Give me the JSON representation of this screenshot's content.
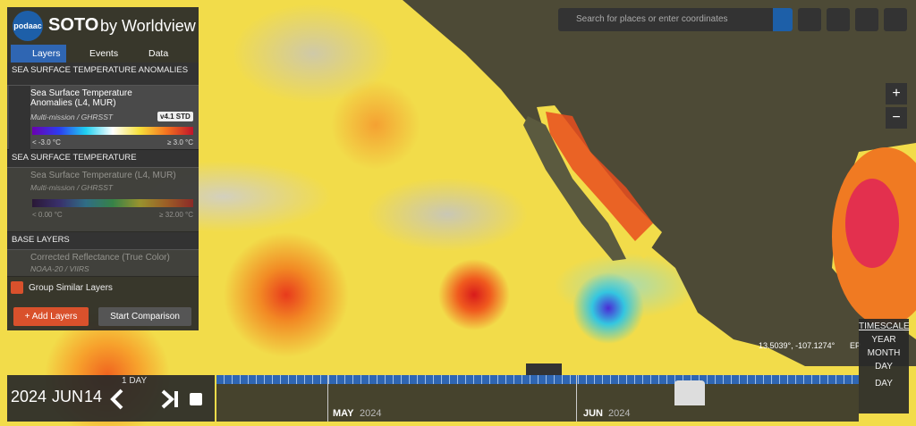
{
  "header": {
    "logo": "podaac",
    "title": "SOTO",
    "title_suffix": "by Worldview"
  },
  "tabs": [
    "Layers",
    "Events",
    "Data"
  ],
  "layer_groups": [
    {
      "title": "SEA SURFACE TEMPERATURE ANOMALIES",
      "layers": [
        {
          "name": "Sea Surface Temperature Anomalies (L4, MUR)",
          "source": "Multi-mission / GHRSST",
          "badge": "v4.1 STD",
          "min_label": "< -3.0 °C",
          "max_label": "≥ 3.0 °C"
        }
      ]
    },
    {
      "title": "SEA SURFACE TEMPERATURE",
      "layers": [
        {
          "name": "Sea Surface Temperature (L4, MUR)",
          "source": "Multi-mission / GHRSST",
          "min_label": "< 0.00 °C",
          "max_label": "≥ 32.00 °C"
        }
      ]
    },
    {
      "title": "BASE LAYERS",
      "layers": [
        {
          "name": "Corrected Reflectance (True Color)",
          "source": "NOAA-20 / VIIRS"
        }
      ]
    }
  ],
  "group_similar": "Group Similar Layers",
  "buttons": {
    "add_layers": "+ Add Layers",
    "start_comparison": "Start Comparison"
  },
  "search": {
    "placeholder": "Search for places or enter coordinates"
  },
  "zoom": {
    "in": "+",
    "out": "−"
  },
  "coordinates": "13.5039°, -107.1274°",
  "projection": "EP",
  "timescale": {
    "title": "TIMESCALE",
    "options": [
      "YEAR",
      "MONTH",
      "DAY"
    ],
    "current": "DAY"
  },
  "interval": "1 DAY",
  "date": {
    "year": "2024",
    "month": "JUN",
    "day": "14"
  },
  "timeline_labels": [
    {
      "month": "MAY",
      "year": "2024"
    },
    {
      "month": "JUN",
      "year": "2024"
    }
  ]
}
